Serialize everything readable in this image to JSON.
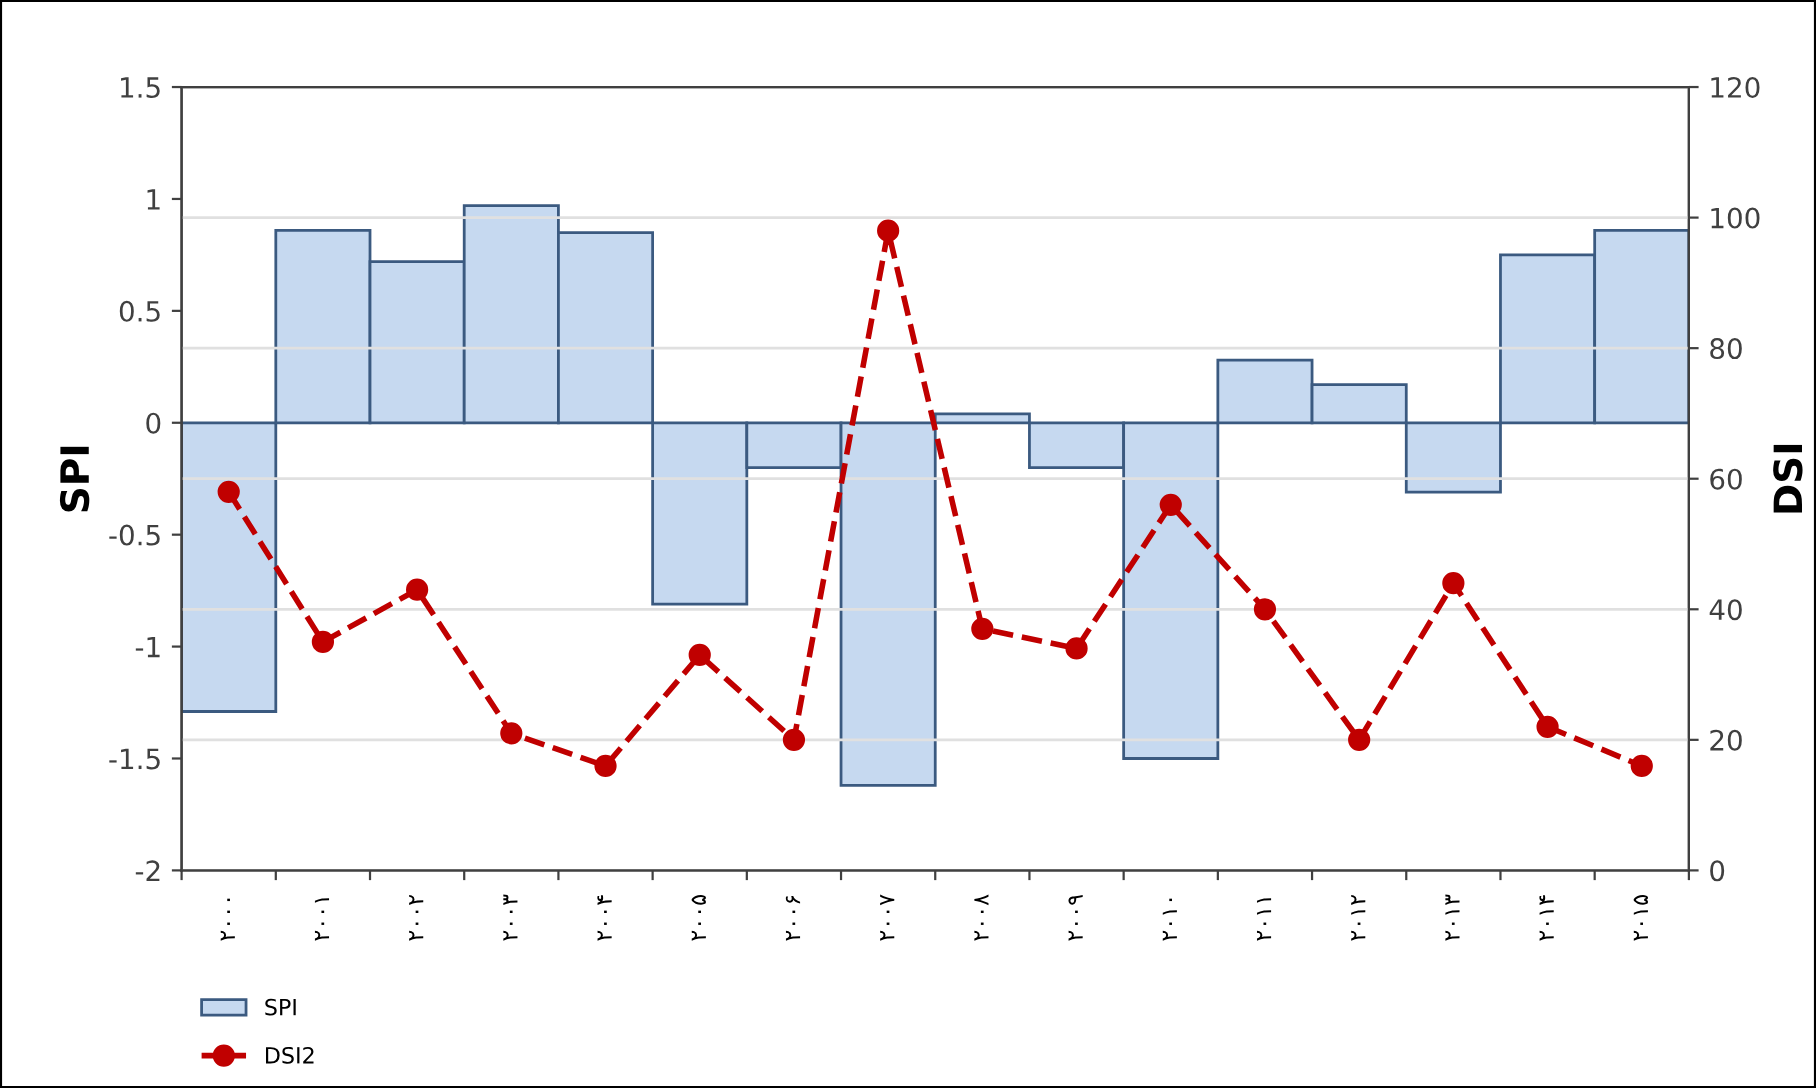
{
  "chart_data": {
    "type": "bar",
    "ylabel": "SPI",
    "y2label": "DSI",
    "categories": [
      "۲۰۰۰",
      "۲۰۰۱",
      "۲۰۰۲",
      "۲۰۰۳",
      "۲۰۰۴",
      "۲۰۰۵",
      "۲۰۰۶",
      "۲۰۰۷",
      "۲۰۰۸",
      "۲۰۰۹",
      "۲۰۱۰",
      "۲۰۱۱",
      "۲۰۱۲",
      "۲۰۱۳",
      "۲۰۱۴",
      "۲۰۱۵"
    ],
    "series": [
      {
        "name": "SPI",
        "color": "#c6d9f0",
        "values": [
          -1.29,
          0.86,
          0.72,
          0.97,
          0.85,
          -0.81,
          -0.2,
          -1.62,
          0.04,
          -0.2,
          -1.5,
          0.28,
          0.17,
          -0.31,
          0.75,
          0.86
        ]
      },
      {
        "name": "DSI2",
        "type": "line",
        "axis": "y2",
        "color": "#c00000",
        "marker": "circle",
        "line_style": "dashed",
        "values": [
          58,
          35,
          43,
          21,
          16,
          33,
          20,
          98,
          37,
          34,
          56,
          40,
          20,
          44,
          22,
          16
        ]
      }
    ],
    "ylim": [
      -2,
      1.5
    ],
    "yticks": [
      {
        "value": -2,
        "label": "-2"
      },
      {
        "value": -1.5,
        "label": "-1.5"
      },
      {
        "value": -1,
        "label": "-1"
      },
      {
        "value": -0.5,
        "label": "-0.5"
      },
      0,
      0.5,
      1,
      1.5
    ],
    "y2lim": [
      0,
      120
    ],
    "y2ticks": [
      0,
      20,
      40,
      60,
      80,
      100,
      120
    ],
    "grid": "y",
    "legend": "bottom left"
  }
}
